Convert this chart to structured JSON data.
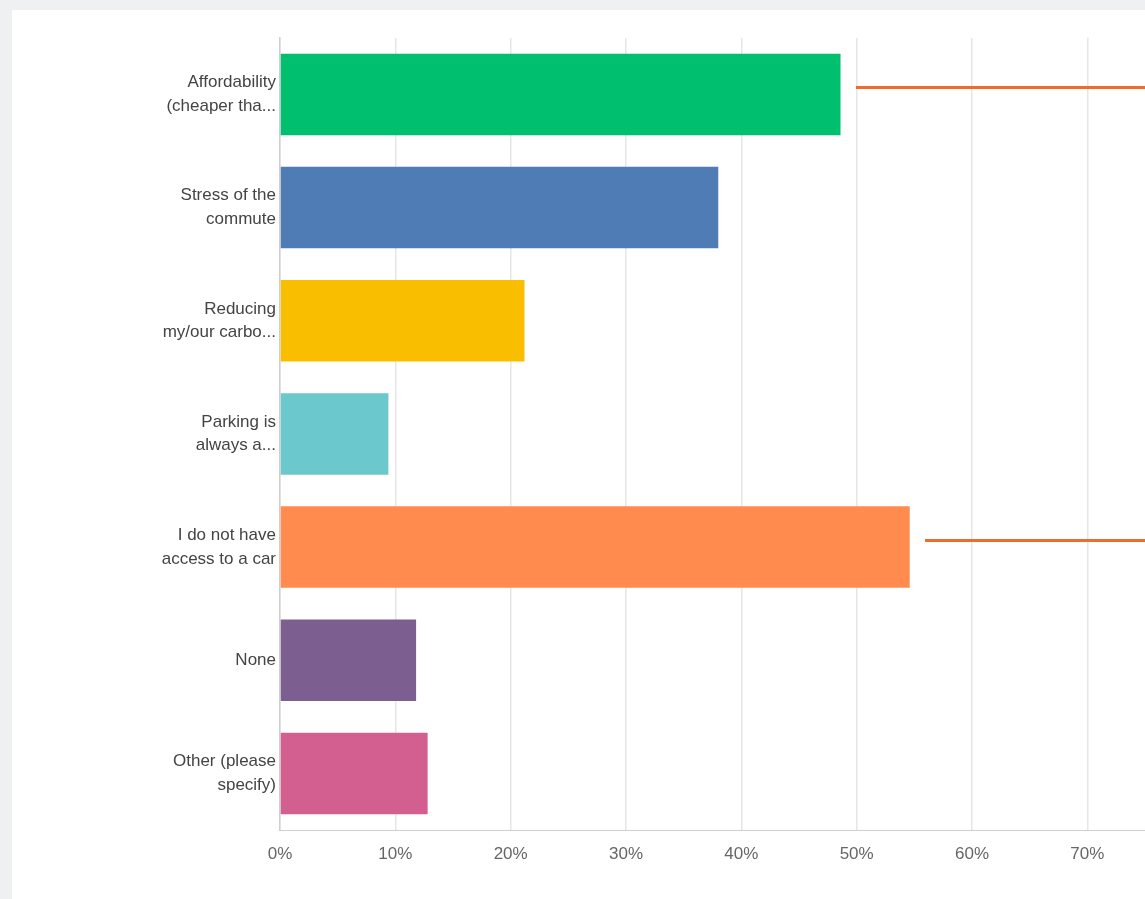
{
  "chart_data": {
    "type": "bar",
    "orientation": "horizontal",
    "categories": [
      "Affordability (cheaper tha...",
      "Stress of the commute",
      "Reducing my/our carbo...",
      "Parking is always a...",
      "I do not have access to a car",
      "None",
      "Other (please specify)"
    ],
    "values": [
      48.6,
      38.0,
      21.2,
      9.4,
      54.6,
      11.8,
      12.8
    ],
    "colors": [
      "#00bf6f",
      "#507cb6",
      "#f9be00",
      "#6bc8cd",
      "#ff8b4f",
      "#7d5e90",
      "#d25f90"
    ],
    "xlim": [
      0,
      75
    ],
    "xticks": [
      {
        "value": 0,
        "label": "0%"
      },
      {
        "value": 10,
        "label": "10%"
      },
      {
        "value": 20,
        "label": "20%"
      },
      {
        "value": 30,
        "label": "30%"
      },
      {
        "value": 40,
        "label": "40%"
      },
      {
        "value": 50,
        "label": "50%"
      },
      {
        "value": 60,
        "label": "60%"
      },
      {
        "value": 70,
        "label": "70%"
      }
    ],
    "grid": "x"
  }
}
